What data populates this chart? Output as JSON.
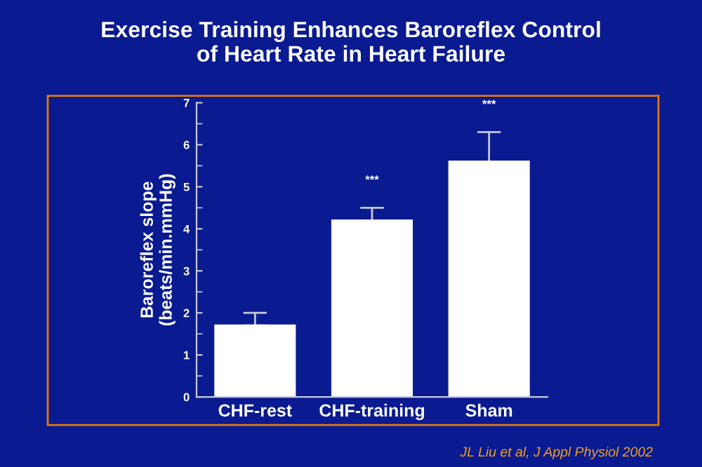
{
  "chart_data": {
    "type": "bar",
    "title": "Exercise Training Enhances Baroreflex Control\nof Heart Rate in Heart Failure",
    "categories": [
      "CHF-rest",
      "CHF-training",
      "Sham"
    ],
    "values": [
      1.7,
      4.2,
      5.6
    ],
    "color": "#ffffff",
    "errors": [
      [
        1.7,
        2.0
      ],
      [
        4.2,
        4.5
      ],
      [
        5.6,
        6.3
      ]
    ],
    "ylabel": "Baroreflex slope\n(beats/min.mmHg)",
    "ylim": [
      0,
      7
    ],
    "yticks": [
      0,
      1,
      2,
      3,
      4,
      5,
      6,
      7
    ],
    "grid": false,
    "legend": false,
    "annotations": [
      "***",
      "***",
      "JL Liu et al, J Appl Physiol 2002"
    ]
  }
}
